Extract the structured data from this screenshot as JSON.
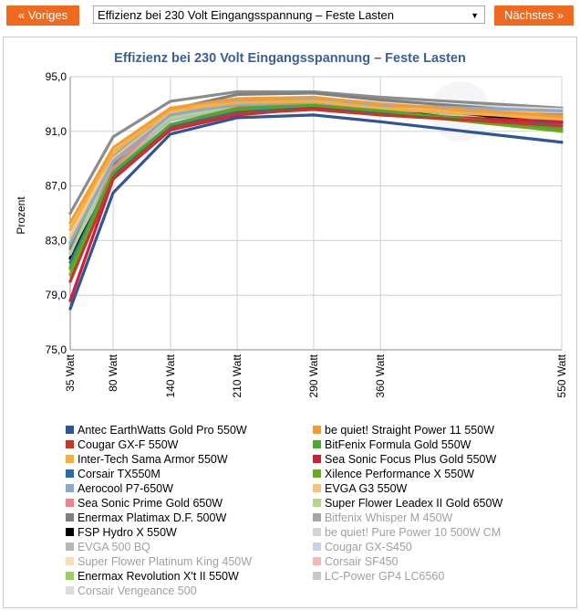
{
  "nav": {
    "prev_label": "« Voriges",
    "next_label": "Nächstes »",
    "select_value": "Effizienz bei 230 Volt Eingangsspannung – Feste Lasten"
  },
  "chart_data": {
    "type": "line",
    "title": "Effizienz bei 230 Volt Eingangsspannung – Feste Lasten",
    "xlabel": "",
    "ylabel": "Prozent",
    "categories": [
      "35 Watt",
      "80 Watt",
      "140 Watt",
      "210 Watt",
      "290 Watt",
      "360 Watt",
      "550 Watt"
    ],
    "x": [
      35,
      80,
      140,
      210,
      290,
      360,
      550
    ],
    "ylim": [
      75,
      95
    ],
    "yticks": [
      "75,0",
      "79,0",
      "83,0",
      "87,0",
      "91,0",
      "95,0"
    ],
    "grid": true,
    "legend_position": "bottom",
    "series": [
      {
        "name": "Antec EarthWatts Gold Pro 550W",
        "color": "#2f5597",
        "values": [
          78.0,
          86.5,
          90.8,
          92.0,
          92.2,
          91.7,
          90.2
        ]
      },
      {
        "name": "be quiet! Straight Power 11 550W",
        "color": "#f39c33",
        "values": [
          84.3,
          89.8,
          92.7,
          93.4,
          93.5,
          93.0,
          92.1
        ]
      },
      {
        "name": "Cougar GX-F 550W",
        "color": "#c0392b",
        "values": [
          80.0,
          87.6,
          91.2,
          92.3,
          92.6,
          92.2,
          91.4
        ]
      },
      {
        "name": "BitFenix Formula Gold 550W",
        "color": "#4ea72e",
        "values": [
          81.0,
          88.0,
          91.5,
          92.7,
          92.9,
          92.5,
          91.2
        ]
      },
      {
        "name": "Inter-Tech Sama Armor 550W",
        "color": "#f5b041",
        "values": [
          83.8,
          89.5,
          92.5,
          93.1,
          93.2,
          92.7,
          91.9
        ]
      },
      {
        "name": "Sea Sonic Focus Plus Gold 550W",
        "color": "#cc1f3a",
        "values": [
          78.6,
          87.5,
          91.1,
          92.2,
          92.7,
          92.2,
          91.7
        ]
      },
      {
        "name": "Corsair TX550M",
        "color": "#2e6aa8",
        "values": [
          81.4,
          87.9,
          91.3,
          92.4,
          92.7,
          92.3,
          91.6
        ]
      },
      {
        "name": "Xilence Performance X 550W",
        "color": "#6aaa1e",
        "values": [
          80.5,
          87.8,
          91.4,
          92.6,
          92.8,
          92.4,
          91.0
        ]
      },
      {
        "name": "Aerocool P7-650W",
        "color": "#8fa8c8",
        "values": [
          82.8,
          88.8,
          92.2,
          93.0,
          93.1,
          92.9,
          92.5
        ]
      },
      {
        "name": "EVGA G3 550W",
        "color": "#f3c47a",
        "values": [
          83.2,
          89.0,
          92.3,
          93.0,
          93.2,
          92.8,
          92.4
        ]
      },
      {
        "name": "Sea Sonic Prime Gold 650W",
        "color": "#e8868c",
        "values": [
          80.9,
          88.3,
          92.4,
          92.9,
          93.0,
          92.6,
          92.0
        ]
      },
      {
        "name": "Super Flower Leadex II Gold 650W",
        "color": "#b5d68a",
        "values": [
          82.0,
          88.8,
          92.0,
          92.9,
          93.1,
          92.8,
          91.3
        ]
      },
      {
        "name": "Enermax Platimax D.F. 500W",
        "color": "#7f7f7f",
        "values": [
          82.4,
          88.5,
          92.6,
          93.7,
          93.8,
          93.3,
          92.3
        ]
      },
      {
        "name": "Bitfenix Whisper M 450W",
        "color": "#a6a6a6",
        "values": [
          82.6,
          89.2,
          92.4,
          93.2,
          93.3,
          92.9,
          91.8
        ]
      },
      {
        "name": "FSP Hydro X 550W",
        "color": "#000000",
        "values": [
          81.7,
          87.7,
          91.4,
          92.5,
          92.7,
          92.4,
          91.8
        ]
      },
      {
        "name": "be quiet! Pure Power 10 500W CM",
        "color": "#d4d4d4",
        "values": [
          82.2,
          88.9,
          92.2,
          93.0,
          93.1,
          92.6,
          91.5
        ]
      },
      {
        "name": "EVGA 500 BQ",
        "color": "#b8b8b8",
        "values": [
          82.1,
          88.4,
          91.8,
          92.8,
          92.9,
          92.5,
          91.7
        ]
      },
      {
        "name": "Cougar GX-S450",
        "color": "#c6d3e6",
        "values": [
          82.9,
          88.9,
          92.1,
          93.0,
          93.0,
          92.7,
          92.0
        ]
      },
      {
        "name": "Super Flower Platinum King 450W",
        "color": "#f7e0b8",
        "values": [
          83.0,
          89.1,
          92.4,
          93.2,
          93.3,
          93.0,
          92.2
        ]
      },
      {
        "name": "Corsair SF450",
        "color": "#f2b8b8",
        "values": [
          82.3,
          88.7,
          92.2,
          93.1,
          93.2,
          92.9,
          92.1
        ]
      },
      {
        "name": "Enermax Revolution X't II 550W",
        "color": "#9ccc65",
        "values": [
          81.2,
          88.1,
          91.9,
          92.8,
          92.9,
          92.5,
          91.1
        ]
      },
      {
        "name": "LC-Power GP4 LC6560",
        "color": "#c8c8c8",
        "values": [
          82.7,
          88.6,
          92.0,
          92.9,
          93.0,
          92.6,
          91.9
        ]
      },
      {
        "name": "Corsair Vengeance 500",
        "color": "#dcdcdc",
        "values": [
          83.5,
          88.9,
          92.5,
          93.4,
          93.4,
          93.1,
          92.6
        ]
      },
      {
        "name": "",
        "color": "#8c8c8c",
        "values": [
          85.0,
          90.6,
          93.2,
          93.9,
          93.9,
          93.5,
          92.7
        ]
      }
    ]
  }
}
